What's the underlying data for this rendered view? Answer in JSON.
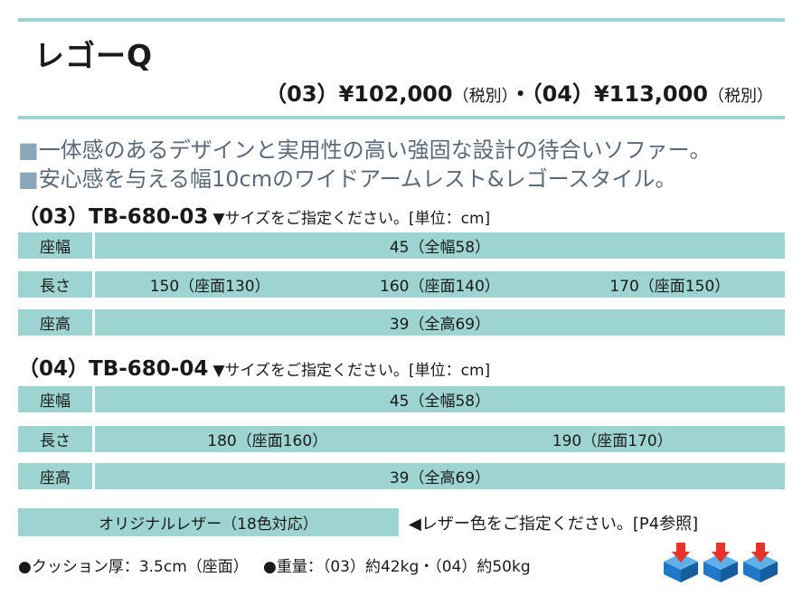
{
  "title": "レゴーQ",
  "price": {
    "code03": "（03）",
    "price03": "¥102,000",
    "tax03": "（税別）",
    "sep": "・",
    "code04": "（04）",
    "price04": "¥113,000",
    "tax04": "（税別）"
  },
  "features": [
    "一体感のあるデザインと実用性の高い強固な設計の待合いソファー。",
    "安心感を与える幅10cmのワイドアームレスト&レゴースタイル。"
  ],
  "models": [
    {
      "code": "（03）TB-680-03",
      "note": "▼サイズをご指定ください。[単位：cm]",
      "rows": [
        {
          "label": "座幅",
          "values": [
            "45（全幅58）"
          ]
        },
        {
          "label": "長さ",
          "values": [
            "150（座面130）",
            "160（座面140）",
            "170（座面150）"
          ]
        },
        {
          "label": "座高",
          "values": [
            "39（全高69）"
          ]
        }
      ]
    },
    {
      "code": "（04）TB-680-04",
      "note": "▼サイズをご指定ください。[単位：cm]",
      "rows": [
        {
          "label": "座幅",
          "values": [
            "45（全幅58）"
          ]
        },
        {
          "label": "長さ",
          "values": [
            "180（座面160）",
            "190（座面170）"
          ]
        },
        {
          "label": "座高",
          "values": [
            "39（全高69）"
          ]
        }
      ]
    }
  ],
  "leather": {
    "label": "オリジナルレザー（18色対応）",
    "note": "◀レザー色をご指定ください。[P4参照]"
  },
  "footer": {
    "cushion": "●クッション厚：3.5cm（座面）",
    "weight": "●重量：（03）約42kg・（04）約50kg"
  },
  "colors": {
    "accent": "#9dd3d0",
    "feature_text": "#5a6a7a",
    "icon_blue": "#1f78c8",
    "icon_red": "#e8322a"
  },
  "icons": [
    "delivery-box-icon",
    "delivery-box-icon",
    "delivery-box-icon"
  ]
}
